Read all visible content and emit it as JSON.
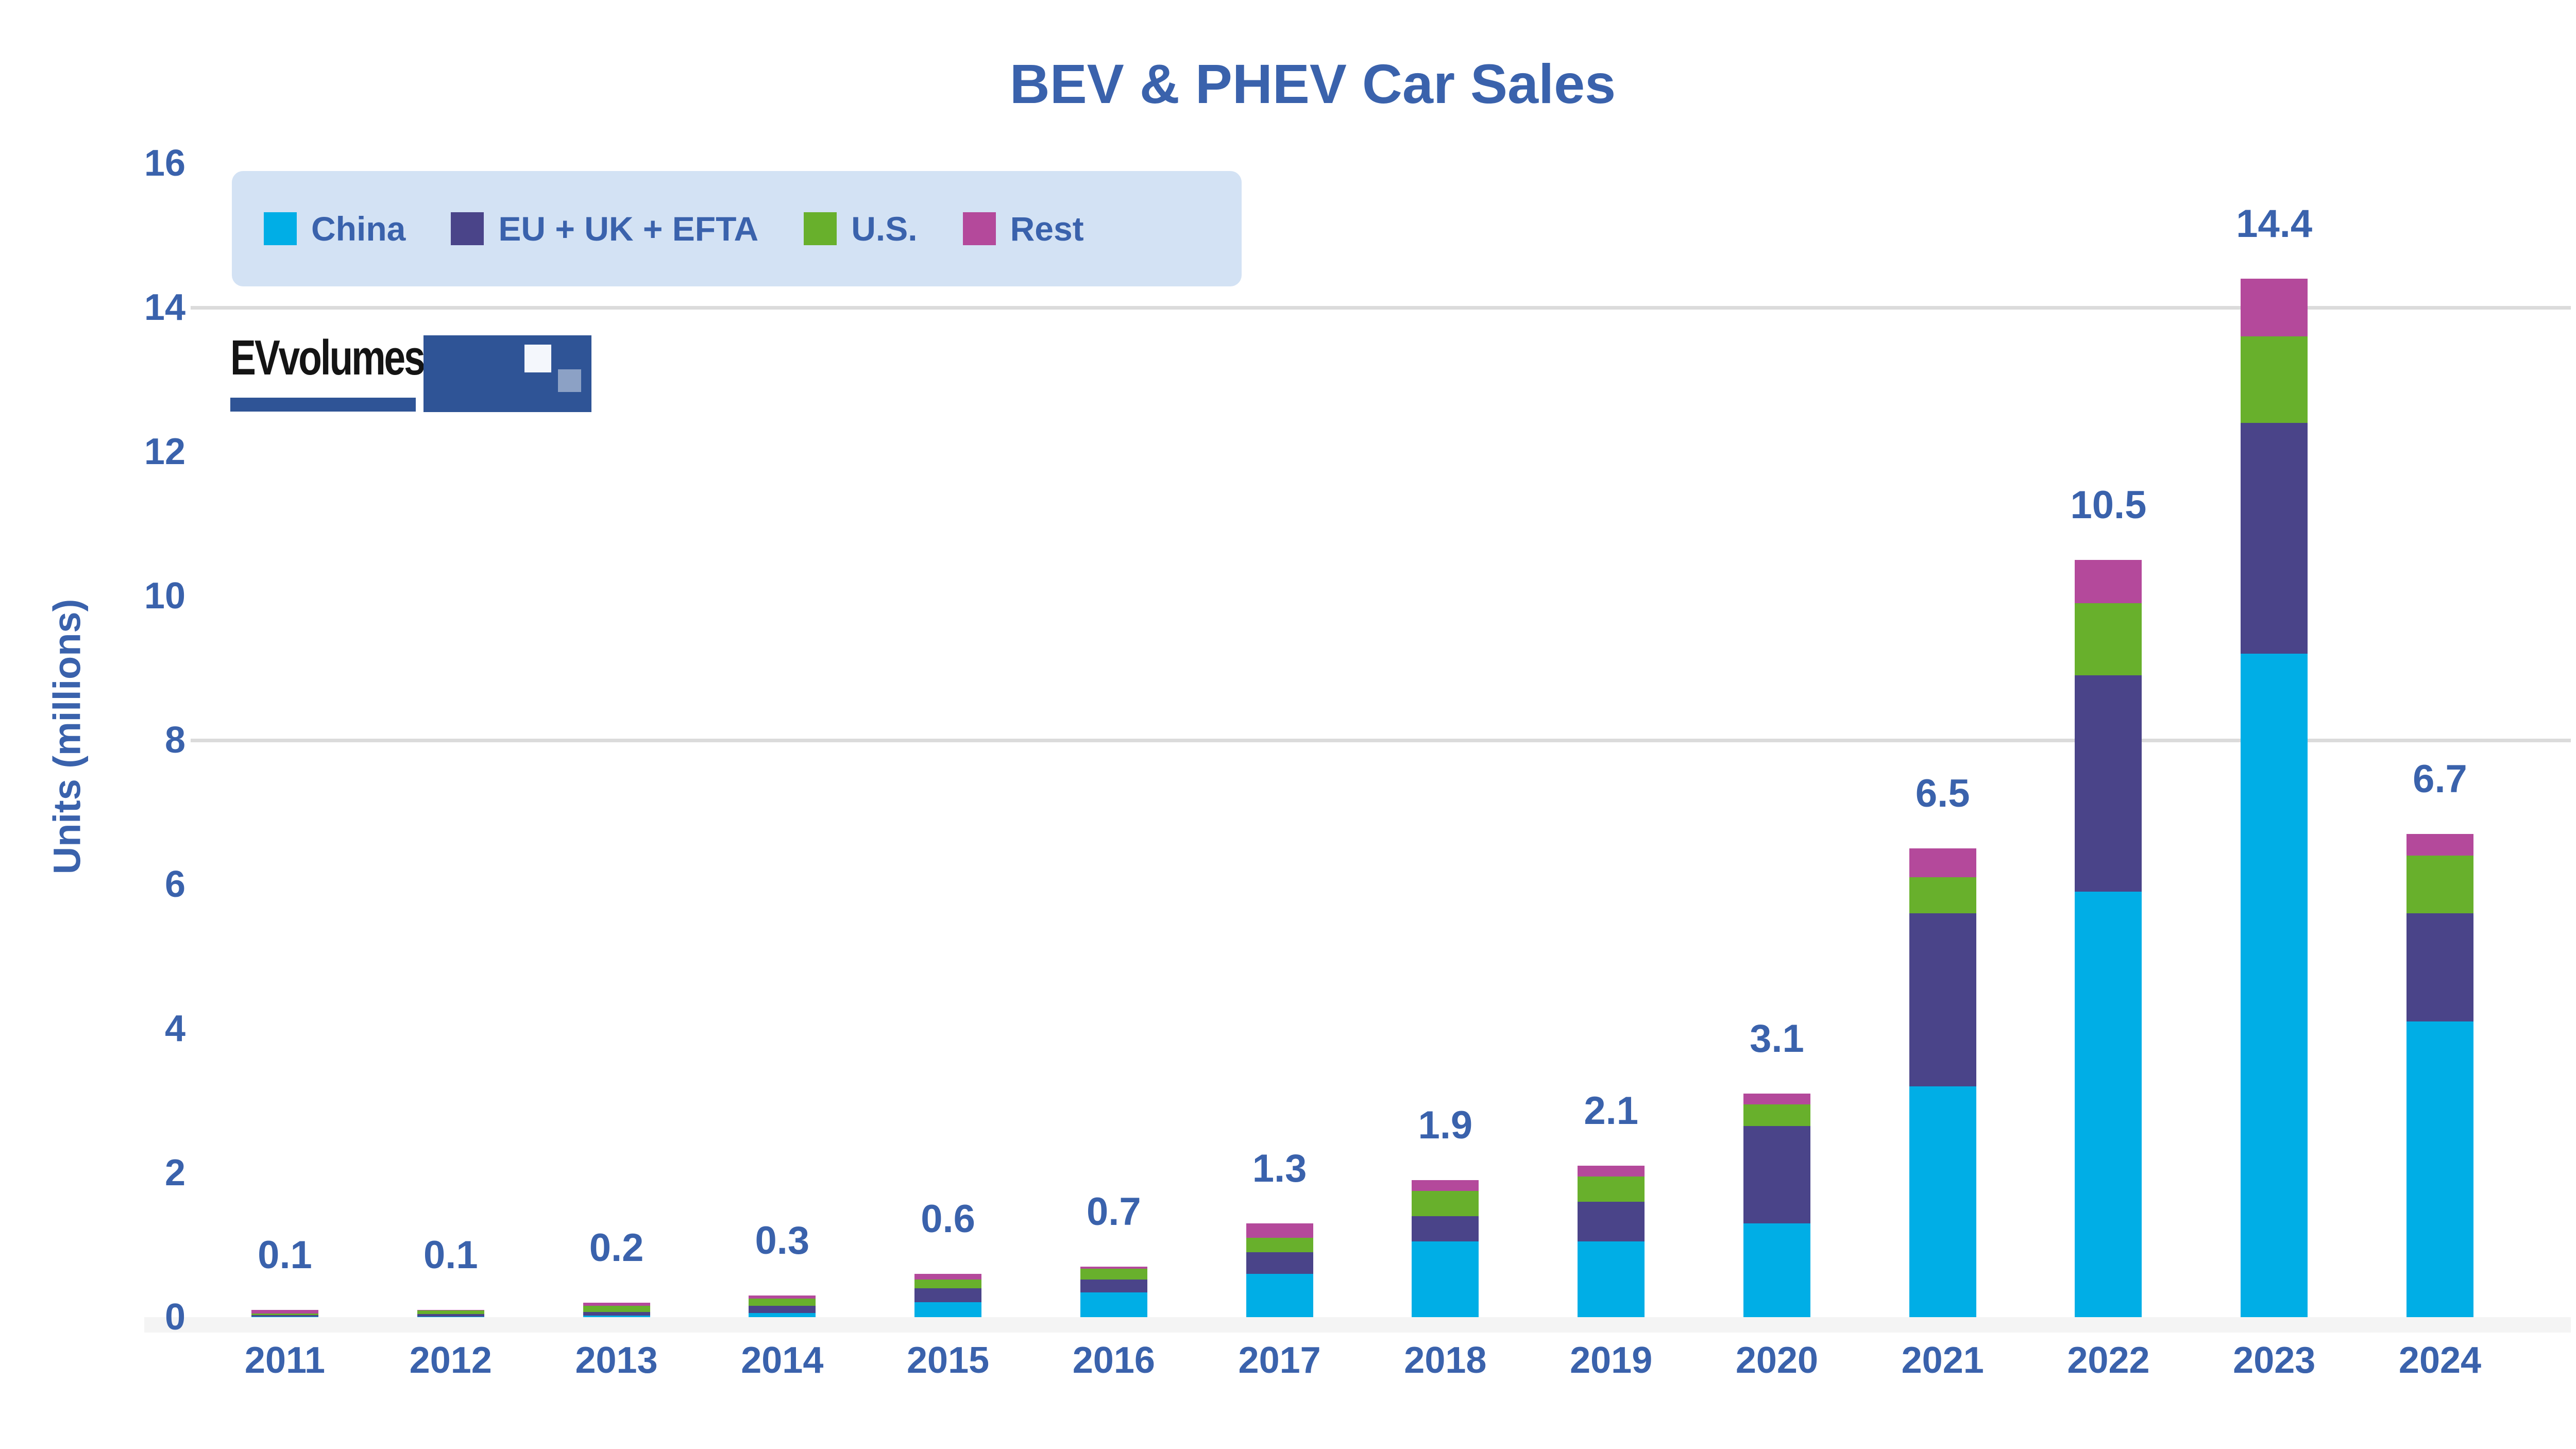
{
  "title": "BEV & PHEV Car Sales",
  "theme": {
    "text_color": "#3A62AC",
    "grid_color": "#DBDBDB",
    "baseline_band_color": "#F4F4F4",
    "legend_bg": "#D3E2F4",
    "logo_blue": "#2F5496"
  },
  "logo": {
    "text": "EVvolumes"
  },
  "legend": {
    "items": [
      {
        "label": "China",
        "color": "#00AEE6"
      },
      {
        "label": "EU + UK + EFTA",
        "color": "#4A4489"
      },
      {
        "label": "U.S.",
        "color": "#68B02C"
      },
      {
        "label": "Rest",
        "color": "#B4499B"
      }
    ]
  },
  "chart_data": {
    "type": "bar",
    "stacked": true,
    "title": "BEV & PHEV Car Sales",
    "ylabel": "Units (millions)",
    "xlabel": "",
    "ylim": [
      0,
      16
    ],
    "y_ticks": [
      0,
      2,
      4,
      6,
      8,
      10,
      12,
      14,
      16
    ],
    "gridlines": [
      8,
      14
    ],
    "legend_position": "top-left",
    "categories": [
      "2011",
      "2012",
      "2013",
      "2014",
      "2015",
      "2016",
      "2017",
      "2018",
      "2019",
      "2020",
      "2021",
      "2022",
      "2023",
      "2024"
    ],
    "series": [
      {
        "name": "China",
        "color": "#00AEE6",
        "values": [
          0.01,
          0.01,
          0.02,
          0.06,
          0.21,
          0.34,
          0.6,
          1.05,
          1.05,
          1.3,
          3.2,
          5.9,
          9.2,
          4.1
        ]
      },
      {
        "name": "EU + UK + EFTA",
        "color": "#4A4489",
        "values": [
          0.02,
          0.03,
          0.05,
          0.1,
          0.19,
          0.18,
          0.3,
          0.35,
          0.55,
          1.35,
          2.4,
          3.0,
          3.2,
          1.5
        ]
      },
      {
        "name": "U.S.",
        "color": "#68B02C",
        "values": [
          0.02,
          0.05,
          0.09,
          0.1,
          0.12,
          0.15,
          0.2,
          0.35,
          0.35,
          0.3,
          0.5,
          1.0,
          1.2,
          0.8
        ]
      },
      {
        "name": "Rest",
        "color": "#B4499B",
        "values": [
          0.05,
          0.01,
          0.04,
          0.04,
          0.08,
          0.03,
          0.2,
          0.15,
          0.15,
          0.15,
          0.4,
          0.6,
          0.8,
          0.3
        ]
      }
    ],
    "total_labels": [
      "0.1",
      "0.1",
      "0.2",
      "0.3",
      "0.6",
      "0.7",
      "1.3",
      "1.9",
      "2.1",
      "3.1",
      "6.5",
      "10.5",
      "14.4",
      "6.7"
    ]
  }
}
